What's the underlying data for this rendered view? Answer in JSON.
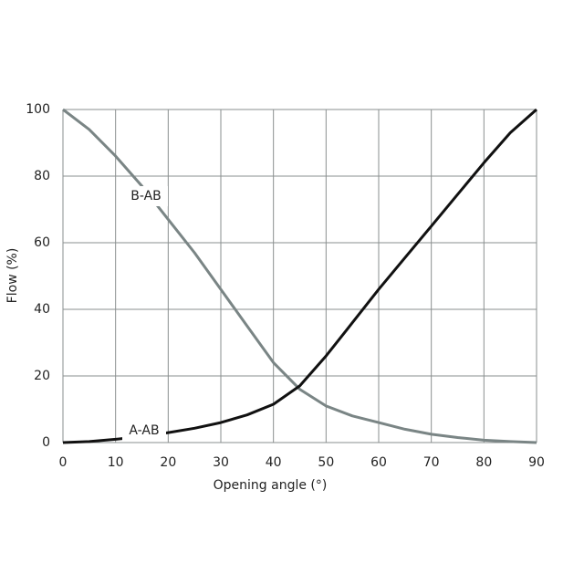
{
  "chart_data": {
    "type": "line",
    "x_label": "Opening angle (°)",
    "y_label": "Flow (%)",
    "x": [
      0,
      5,
      10,
      15,
      20,
      25,
      30,
      35,
      40,
      45,
      50,
      55,
      60,
      65,
      70,
      75,
      80,
      85,
      90
    ],
    "series": [
      {
        "name": "B-AB",
        "color": "#7a8585",
        "values": [
          100,
          94,
          86,
          77,
          67,
          57,
          46,
          35,
          24,
          16,
          11,
          8,
          6,
          4,
          2.5,
          1.5,
          0.7,
          0.3,
          0
        ]
      },
      {
        "name": "A-AB",
        "color": "#111111",
        "values": [
          0,
          0.3,
          1,
          1.8,
          3,
          4.3,
          6,
          8.3,
          11.5,
          17,
          26,
          36,
          46,
          55.5,
          65,
          74.5,
          84,
          93,
          100
        ]
      }
    ],
    "xlim": [
      0,
      90
    ],
    "xticks": [
      0,
      10,
      20,
      30,
      40,
      50,
      60,
      70,
      80,
      90
    ],
    "ylim": [
      0,
      100
    ],
    "yticks": [
      0,
      20,
      40,
      60,
      80,
      100
    ],
    "grid": true
  }
}
